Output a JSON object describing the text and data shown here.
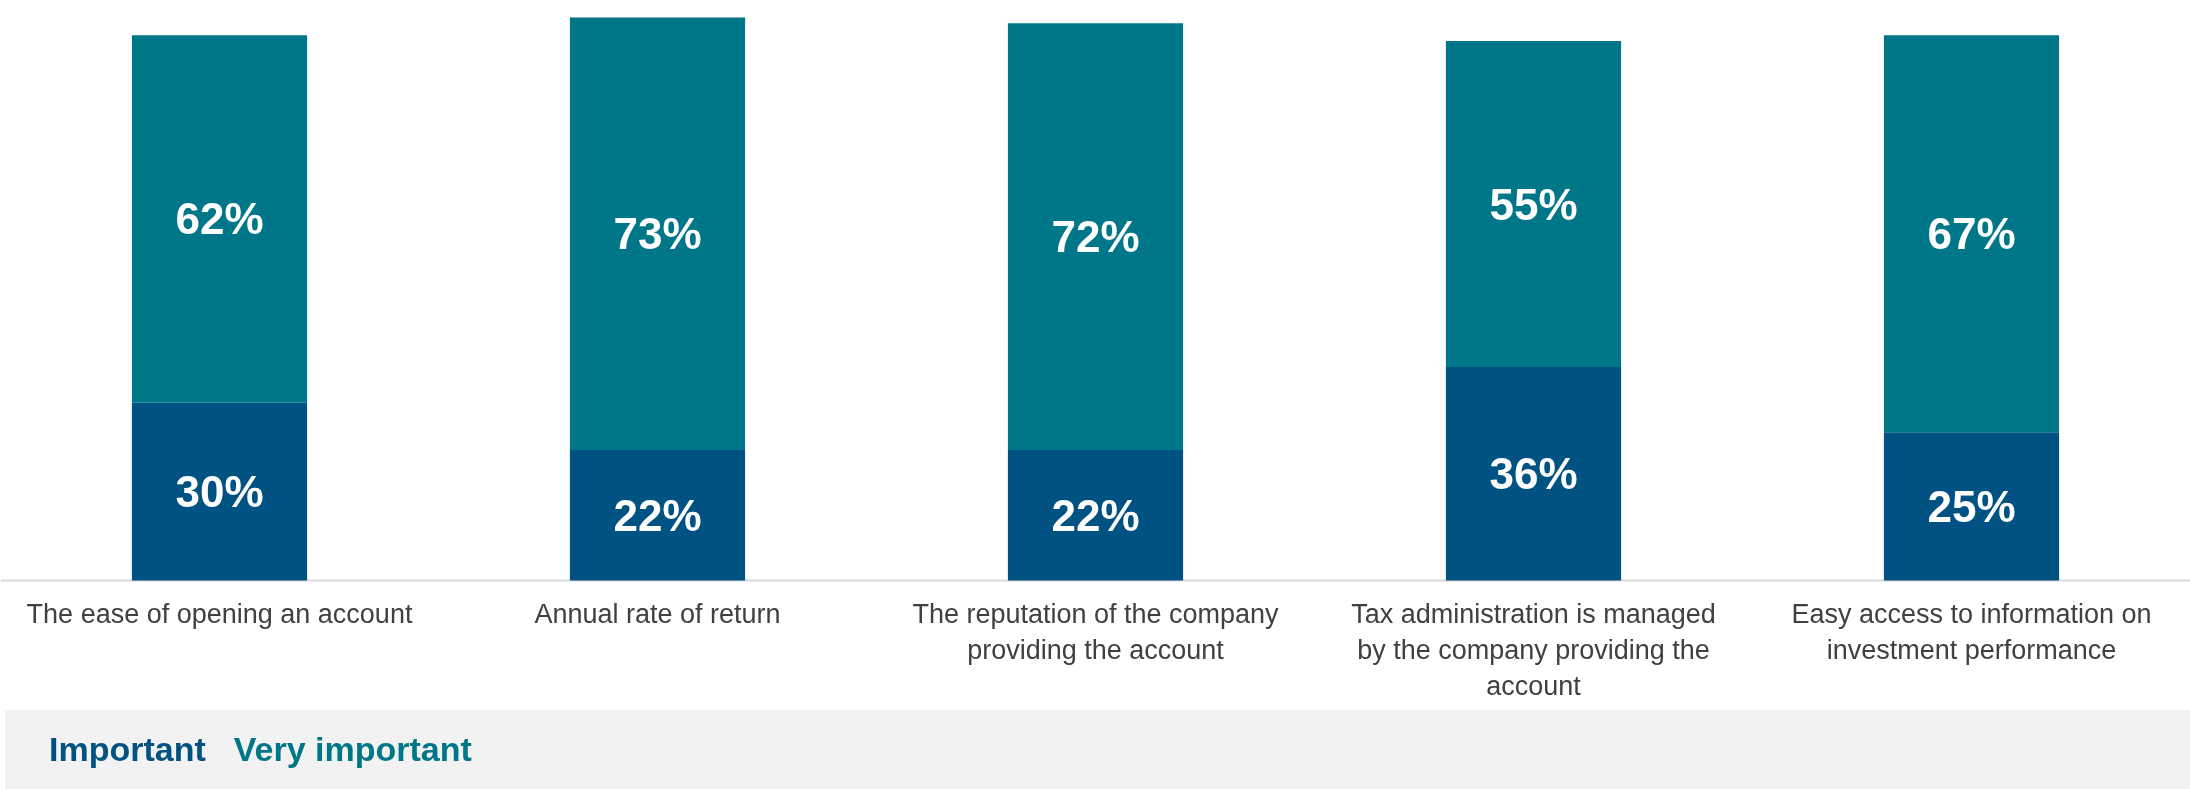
{
  "chart_data": {
    "type": "bar",
    "stacked": true,
    "legend": "bottom",
    "grid": false,
    "categories": [
      "The ease of opening an account",
      "Annual rate of return",
      "The reputation of the company providing the account",
      "Tax administration is managed by the company providing the account",
      "Easy access to information on investment performance"
    ],
    "series": [
      {
        "name": "Important",
        "color": "#005282",
        "values": [
          30,
          22,
          22,
          36,
          25
        ],
        "value_labels": [
          "30%",
          "22%",
          "22%",
          "36%",
          "25%"
        ]
      },
      {
        "name": "Very important",
        "color": "#007788",
        "values": [
          62,
          73,
          72,
          55,
          67
        ],
        "value_labels": [
          "62%",
          "73%",
          "72%",
          "55%",
          "67%"
        ]
      }
    ]
  }
}
